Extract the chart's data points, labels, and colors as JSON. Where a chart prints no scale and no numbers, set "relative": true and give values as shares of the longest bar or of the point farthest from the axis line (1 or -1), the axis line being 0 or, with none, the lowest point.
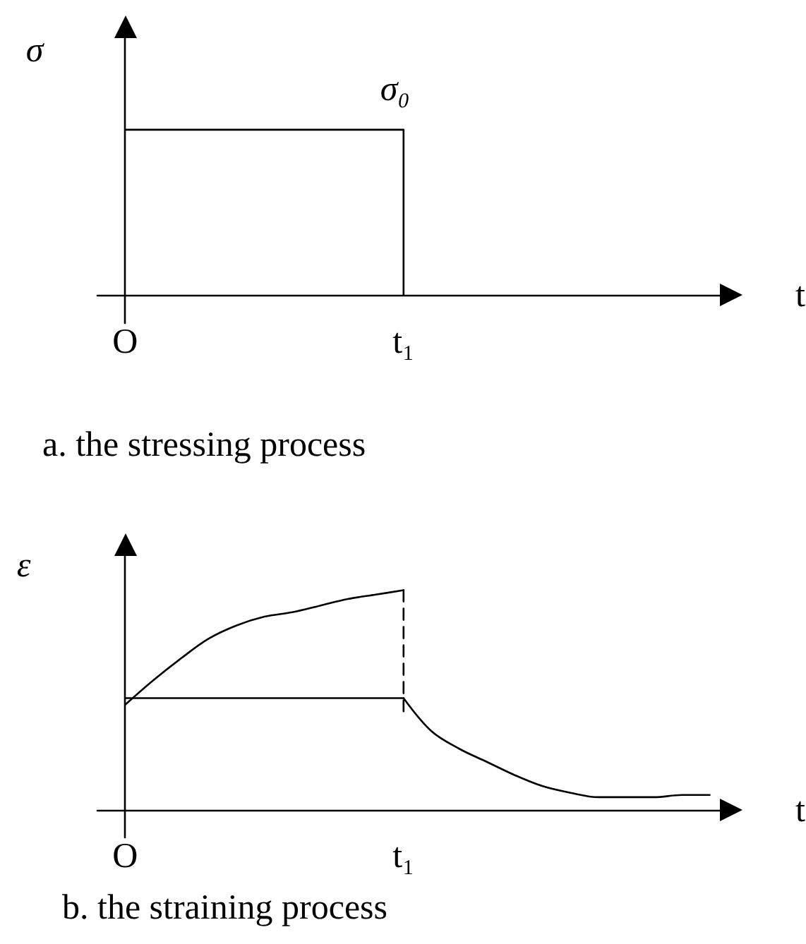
{
  "chart_data": [
    {
      "type": "line",
      "title": "a. the stressing process",
      "xlabel": "t",
      "ylabel": "σ",
      "relative": true,
      "categories": [
        null,
        "O",
        null,
        null,
        null,
        null,
        null,
        null,
        null,
        null,
        null,
        "t₁",
        null,
        null,
        null,
        null,
        null,
        null,
        null,
        null,
        null,
        null,
        null,
        null
      ],
      "tick_labels": "x",
      "marker": "none",
      "annotations": [
        {
          "text": "σ₀",
          "x": "t₁",
          "y": 1
        }
      ],
      "series": [
        {
          "color": "#000000",
          "line_style": "solid",
          "x": [
            "O",
            "t₁",
            "t₁"
          ],
          "values": [
            1,
            1,
            0
          ]
        }
      ]
    },
    {
      "type": "line",
      "title": "b. the straining process",
      "xlabel": "t",
      "ylabel": "ε",
      "relative": true,
      "categories": [
        null,
        "O",
        null,
        null,
        null,
        null,
        null,
        null,
        null,
        null,
        null,
        "t₁",
        null,
        null,
        null,
        null,
        null,
        null,
        null,
        null,
        null,
        null,
        null,
        null
      ],
      "tick_labels": "x",
      "marker": "none",
      "series": [
        {
          "color": "#000000",
          "line_style": "solid",
          "values": [
            null,
            0.48,
            0.59,
            0.69,
            0.78,
            0.84,
            0.88,
            0.9,
            0.93,
            0.96,
            0.98,
            1,
            null,
            null,
            null,
            null,
            null,
            null,
            null,
            null,
            null,
            null,
            null,
            null
          ]
        },
        {
          "color": "#000000",
          "line_style": "solid",
          "x": [
            "O",
            "t₁"
          ],
          "values": [
            0.51,
            0.51
          ]
        },
        {
          "color": "#000000",
          "line_style": "solid",
          "values": [
            null,
            null,
            null,
            null,
            null,
            null,
            null,
            null,
            null,
            null,
            null,
            0.51,
            0.36,
            0.28,
            0.22,
            0.16,
            0.11,
            0.08,
            0.06,
            0.06,
            0.06,
            0.07,
            0.07,
            null
          ]
        },
        {
          "color": "#000000",
          "line_style": "dashed",
          "x": [
            "t₁",
            "t₁"
          ],
          "values": [
            1,
            0.45
          ]
        }
      ]
    }
  ]
}
